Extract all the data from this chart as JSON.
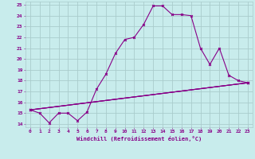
{
  "title": "",
  "xlabel": "Windchill (Refroidissement éolien,°C)",
  "ylabel": "",
  "background_color": "#c8ecec",
  "line_color": "#880088",
  "grid_color": "#aacccc",
  "xlim": [
    -0.5,
    23.5
  ],
  "ylim": [
    13.7,
    25.3
  ],
  "yticks": [
    14,
    15,
    16,
    17,
    18,
    19,
    20,
    21,
    22,
    23,
    24,
    25
  ],
  "xticks": [
    0,
    1,
    2,
    3,
    4,
    5,
    6,
    7,
    8,
    9,
    10,
    11,
    12,
    13,
    14,
    15,
    16,
    17,
    18,
    19,
    20,
    21,
    22,
    23
  ],
  "lines": [
    [
      0,
      15.3
    ],
    [
      1,
      15.0
    ],
    [
      2,
      14.1
    ],
    [
      3,
      15.0
    ],
    [
      4,
      15.0
    ],
    [
      5,
      14.3
    ],
    [
      6,
      15.1
    ],
    [
      7,
      17.2
    ],
    [
      8,
      18.6
    ],
    [
      9,
      20.5
    ],
    [
      10,
      21.8
    ],
    [
      11,
      22.0
    ],
    [
      12,
      23.2
    ],
    [
      13,
      24.9
    ],
    [
      14,
      24.9
    ],
    [
      15,
      24.1
    ],
    [
      16,
      24.1
    ],
    [
      17,
      24.0
    ],
    [
      18,
      21.0
    ],
    [
      19,
      19.5
    ],
    [
      20,
      21.0
    ],
    [
      21,
      18.5
    ],
    [
      22,
      18.0
    ],
    [
      23,
      17.8
    ]
  ],
  "line2": [
    [
      0,
      15.3
    ],
    [
      23,
      17.8
    ]
  ],
  "line3": [
    [
      0,
      15.3
    ],
    [
      23,
      17.8
    ]
  ],
  "line4": [
    [
      0,
      15.3
    ],
    [
      23,
      17.8
    ]
  ]
}
